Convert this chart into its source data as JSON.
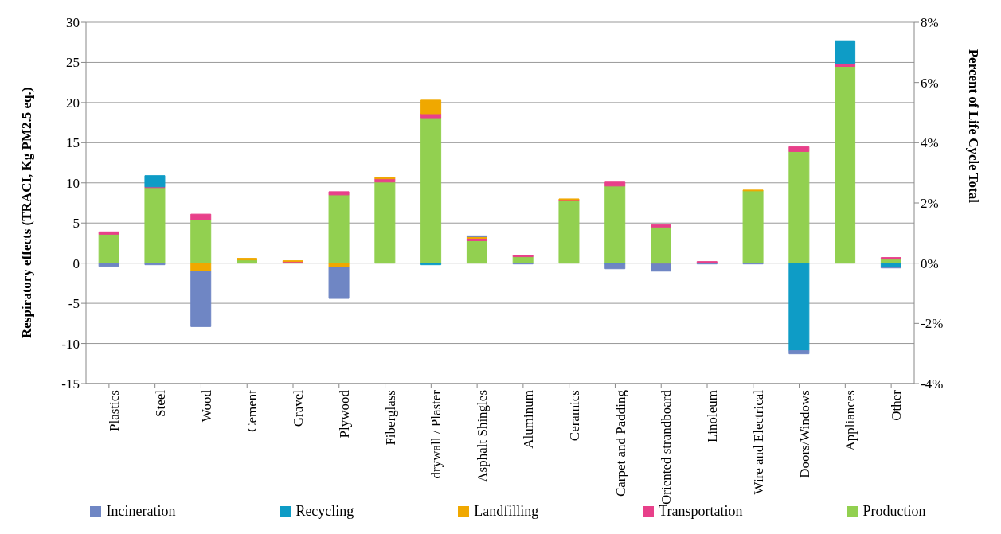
{
  "chart_data": {
    "type": "bar",
    "stacked": true,
    "ylabel": "Respiratory effects (TRACI, Kg PM2.5 eq.)",
    "y2label": "Percent of Life Cycle Total",
    "categories": [
      "Plastics",
      "Steel",
      "Wood",
      "Cement",
      "Gravel",
      "Plywood",
      "Fiberglass",
      "drywall / Plaster",
      "Asphalt Shingles",
      "Aluminum",
      "Ceramics",
      "Carpet and Padding",
      "Oriented strandboard",
      "Linoleum",
      "Wire and Electrical",
      "Doors/Windows",
      "Appliances",
      "Other"
    ],
    "series": [
      {
        "name": "Production",
        "color": "#92d050",
        "values": [
          3.6,
          9.4,
          5.4,
          0.4,
          0.1,
          8.5,
          10.1,
          18.1,
          2.8,
          0.8,
          7.8,
          9.6,
          4.5,
          null,
          9.0,
          13.9,
          24.5,
          0.5
        ]
      },
      {
        "name": "Transportation",
        "color": "#e8408a",
        "values": [
          0.3,
          0.1,
          0.7,
          null,
          0.1,
          0.4,
          0.4,
          0.5,
          0.3,
          0.2,
          0.1,
          0.5,
          0.3,
          0.2,
          null,
          0.6,
          0.4,
          0.2
        ]
      },
      {
        "name": "Landfilling",
        "color": "#f0a800",
        "values": [
          null,
          null,
          -1.0,
          0.2,
          0.1,
          -0.5,
          0.2,
          1.7,
          0.2,
          null,
          0.1,
          null,
          -0.1,
          null,
          0.1,
          null,
          null,
          null
        ]
      },
      {
        "name": "Recycling",
        "color": "#0e9cc6",
        "values": [
          null,
          1.4,
          null,
          null,
          null,
          null,
          null,
          -0.2,
          null,
          null,
          null,
          -0.1,
          null,
          null,
          null,
          -10.9,
          2.8,
          -0.5
        ]
      },
      {
        "name": "Incineration",
        "color": "#6f86c4",
        "values": [
          -0.4,
          -0.2,
          -6.9,
          null,
          null,
          -3.9,
          null,
          null,
          0.1,
          -0.1,
          null,
          -0.6,
          -0.9,
          -0.1,
          -0.1,
          -0.4,
          null,
          -0.1
        ]
      }
    ],
    "ylim": [
      -15,
      30
    ],
    "yticks": [
      -15,
      -10,
      -5,
      0,
      5,
      10,
      15,
      20,
      25,
      30
    ],
    "y2lim": [
      -4,
      8
    ],
    "y2ticks": [
      {
        "value": -4,
        "label": "-4%"
      },
      {
        "value": -2,
        "label": "-2%"
      },
      {
        "value": 0,
        "label": "0%"
      },
      {
        "value": 2,
        "label": "2%"
      },
      {
        "value": 4,
        "label": "4%"
      },
      {
        "value": 6,
        "label": "6%"
      },
      {
        "value": 8,
        "label": "8%"
      }
    ],
    "grid": "y",
    "legend": "bottom"
  }
}
